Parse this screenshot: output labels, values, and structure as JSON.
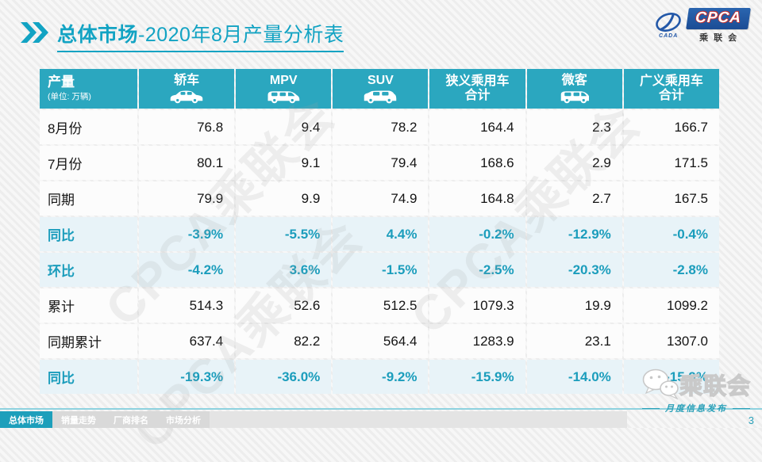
{
  "title": {
    "emphasis": "总体市场",
    "rest": "-2020年8月产量分析表"
  },
  "logo": {
    "cpca": "CPCA",
    "cada": "CADA",
    "name": "乘联会"
  },
  "watermark": {
    "text": "CPCA乘联会"
  },
  "table": {
    "corner": {
      "label": "产量",
      "unit": "(单位: 万辆)"
    },
    "columns": [
      {
        "label": "轿车",
        "icon": "sedan-icon"
      },
      {
        "label": "MPV",
        "icon": "mpv-icon"
      },
      {
        "label": "SUV",
        "icon": "suv-icon"
      },
      {
        "label": "狭义乘用车",
        "label2": "合计",
        "icon": null
      },
      {
        "label": "微客",
        "icon": "microvan-icon"
      },
      {
        "label": "广义乘用车",
        "label2": "合计",
        "icon": null
      }
    ],
    "rows": [
      {
        "label": "8月份",
        "type": "data",
        "values": [
          "76.8",
          "9.4",
          "78.2",
          "164.4",
          "2.3",
          "166.7"
        ]
      },
      {
        "label": "7月份",
        "type": "data",
        "values": [
          "80.1",
          "9.1",
          "79.4",
          "168.6",
          "2.9",
          "171.5"
        ]
      },
      {
        "label": "同期",
        "type": "data",
        "values": [
          "79.9",
          "9.9",
          "74.9",
          "164.8",
          "2.7",
          "167.5"
        ]
      },
      {
        "label": "同比",
        "type": "pct",
        "values": [
          "-3.9%",
          "-5.5%",
          "4.4%",
          "-0.2%",
          "-12.9%",
          "-0.4%"
        ]
      },
      {
        "label": "环比",
        "type": "pct",
        "values": [
          "-4.2%",
          "3.6%",
          "-1.5%",
          "-2.5%",
          "-20.3%",
          "-2.8%"
        ]
      },
      {
        "label": "累计",
        "type": "data",
        "values": [
          "514.3",
          "52.6",
          "512.5",
          "1079.3",
          "19.9",
          "1099.2"
        ]
      },
      {
        "label": "同期累计",
        "type": "data",
        "values": [
          "637.4",
          "82.2",
          "564.4",
          "1283.9",
          "23.1",
          "1307.0"
        ]
      },
      {
        "label": "同比",
        "type": "pct",
        "values": [
          "-19.3%",
          "-36.0%",
          "-9.2%",
          "-15.9%",
          "-14.0%",
          "-15.9%"
        ]
      }
    ]
  },
  "footer": {
    "tabs": [
      {
        "label": "总体市场",
        "active": true
      },
      {
        "label": "销量走势",
        "active": false
      },
      {
        "label": "厂商排名",
        "active": false
      },
      {
        "label": "市场分析",
        "active": false
      }
    ],
    "brand_name": "乘联会",
    "caption": "月度信息发布",
    "page_number": "3"
  },
  "colors": {
    "accent_teal": "#12A3C3",
    "header_teal": "#2BA7BF",
    "pct_row_bg": "#E8F3F8",
    "pct_text": "#1B9DBC",
    "logo_blue": "#1F55A4"
  }
}
